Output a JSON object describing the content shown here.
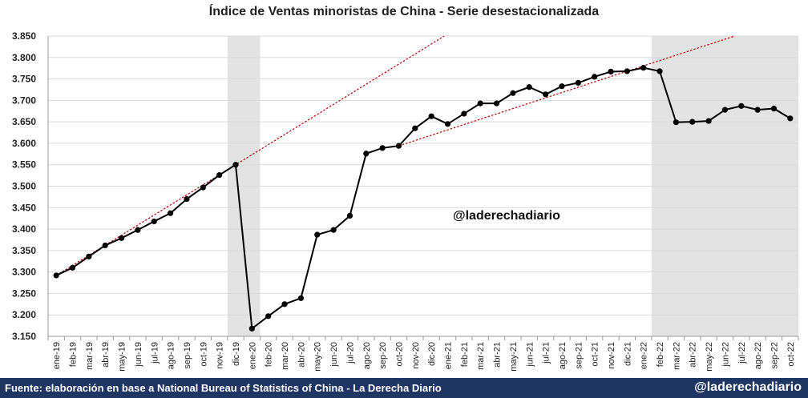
{
  "chart_data": {
    "type": "line",
    "title": "Índice de Ventas minoristas de China - Serie desestacionalizada",
    "x": [
      "ene-19",
      "feb-19",
      "mar-19",
      "abr-19",
      "may-19",
      "jun-19",
      "jul-19",
      "ago-19",
      "sep-19",
      "oct-19",
      "nov-19",
      "dic-19",
      "ene-20",
      "feb-20",
      "mar-20",
      "abr-20",
      "may-20",
      "jun-20",
      "jul-20",
      "ago-20",
      "sep-20",
      "oct-20",
      "nov-20",
      "dic-20",
      "ene-21",
      "feb-21",
      "mar-21",
      "abr-21",
      "may-21",
      "jun-21",
      "jul-21",
      "ago-21",
      "sep-21",
      "oct-21",
      "nov-21",
      "dic-21",
      "ene-22",
      "feb-22",
      "mar-22",
      "abr-22",
      "may-22",
      "jun-22",
      "jul-22",
      "ago-22",
      "sep-22",
      "oct-22"
    ],
    "series": [
      {
        "values": [
          3292,
          3310,
          3336,
          3362,
          3379,
          3398,
          3418,
          3437,
          3470,
          3497,
          3526,
          3550,
          3168,
          3197,
          3225,
          3239,
          3387,
          3398,
          3431,
          3576,
          3589,
          3594,
          3635,
          3663,
          3645,
          3669,
          3693,
          3693,
          3717,
          3731,
          3714,
          3733,
          3741,
          3755,
          3767,
          3768,
          3776,
          3768,
          3649,
          3650,
          3652,
          3678,
          3687,
          3678,
          3681,
          3658
        ],
        "color": "#000000"
      }
    ],
    "trendlines": [
      {
        "from": [
          "ene-19",
          3292
        ],
        "to": [
          "dic-19",
          3550
        ],
        "color": "#c00000",
        "style": "dotted"
      },
      {
        "from": [
          "oct-20",
          3594
        ],
        "to": [
          "dic-21",
          3768
        ],
        "color": "#c00000",
        "style": "dotted"
      }
    ],
    "shaded_ranges": [
      {
        "from": "dic-19",
        "to": "ene-20",
        "color": "#e3e3e3"
      },
      {
        "from": "feb-22",
        "to": "oct-22",
        "color": "#e3e3e3"
      }
    ],
    "y_ticks": [
      "3.150",
      "3.200",
      "3.250",
      "3.300",
      "3.350",
      "3.400",
      "3.450",
      "3.500",
      "3.550",
      "3.600",
      "3.650",
      "3.700",
      "3.750",
      "3.800",
      "3.850"
    ],
    "ylim": [
      3150,
      3850
    ],
    "grid": true,
    "legend": "none"
  },
  "annotation": "@laderechadiario",
  "footer": {
    "source": "Fuente: elaboración en base a National Bureau of Statistics of China - La Derecha Diario",
    "handle": "@laderechadiario"
  },
  "colors": {
    "footer_bg": "#1f3564",
    "trend": "#c00000",
    "shade": "#e3e3e3",
    "grid": "#d9d9d9"
  }
}
